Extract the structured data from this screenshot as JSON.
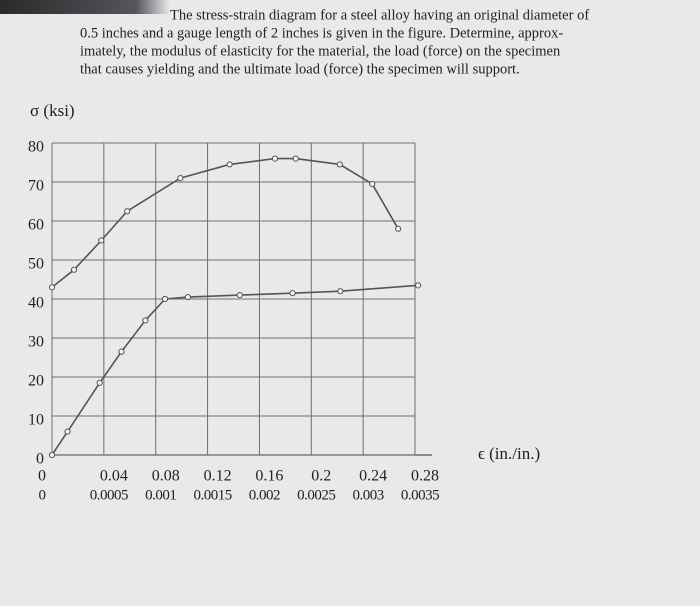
{
  "problem_lines": [
    "The stress-strain diagram for a steel alloy having an original diameter of",
    "0.5 inches and a gauge length of 2 inches is given in the figure. Determine, approx-",
    "imately, the modulus of elasticity for the material, the load (force) on the specimen",
    "that causes yielding and the ultimate load (force) the specimen will support."
  ],
  "chart_data": {
    "type": "line",
    "ylabel": "σ (ksi)",
    "xlabel": "ϵ (in./in.)",
    "ylim": [
      0,
      80
    ],
    "yticks": [
      0,
      10,
      20,
      30,
      40,
      50,
      60,
      70,
      80
    ],
    "xlim": [
      0,
      0.28
    ],
    "xticks": [
      0,
      0.04,
      0.08,
      0.12,
      0.16,
      0.2,
      0.24,
      0.28
    ],
    "x2lim": [
      0,
      0.0035
    ],
    "x2ticks": [
      0,
      0.0005,
      0.001,
      0.0015,
      0.002,
      0.0025,
      0.003,
      0.0035
    ],
    "grid": true,
    "series": [
      {
        "color": "#555555",
        "x": [
          0,
          0.017,
          0.038,
          0.058,
          0.099,
          0.137,
          0.172,
          0.188,
          0.222,
          0.247,
          0.267
        ],
        "values": [
          43,
          47.5,
          55,
          62.5,
          71,
          74.5,
          76,
          76,
          74.5,
          69.5,
          58
        ]
      },
      {
        "color": "#555555",
        "axis": "x2",
        "x": [
          0,
          0.00015,
          0.00046,
          0.00067,
          0.0009,
          0.00109,
          0.00131,
          0.00181,
          0.00232,
          0.00278,
          0.00353
        ],
        "values": [
          0,
          6,
          18.5,
          26.5,
          34.5,
          40,
          40.5,
          41,
          41.5,
          42,
          43.5
        ]
      }
    ]
  }
}
